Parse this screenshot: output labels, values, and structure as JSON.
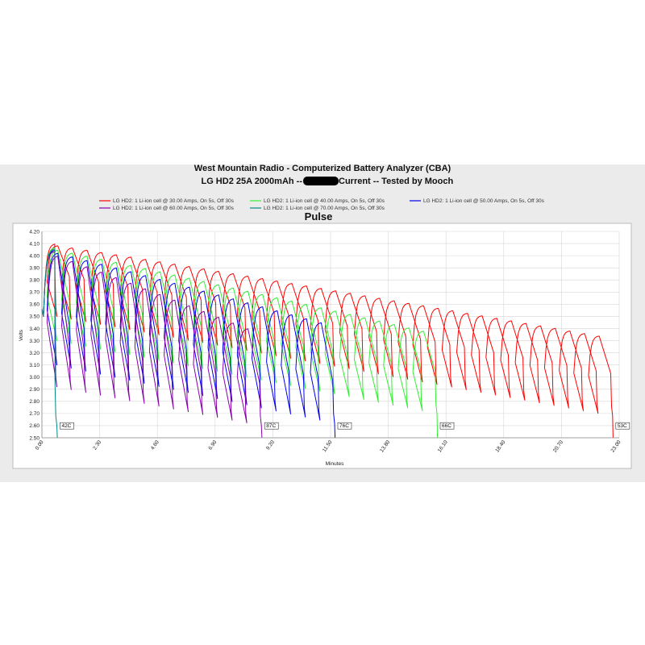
{
  "chart_data": {
    "type": "line",
    "title": "West Mountain Radio - Computerized Battery Analyzer (CBA)",
    "subtitle_left": "LG HD2 25A 2000mAh --",
    "subtitle_right": "Current -- Tested by Mooch",
    "mode": "Pulse",
    "xlabel": "Minutes",
    "ylabel": "Volts",
    "xlim": [
      0,
      23
    ],
    "ylim": [
      2.5,
      4.2
    ],
    "grid": true,
    "legend_position": "top",
    "x_ticks": [
      "0.00",
      "2.30",
      "4.60",
      "6.90",
      "9.20",
      "11.50",
      "13.80",
      "16.10",
      "18.40",
      "20.70",
      "23.00"
    ],
    "y_ticks": [
      "2.50",
      "2.60",
      "2.70",
      "2.80",
      "2.90",
      "3.00",
      "3.10",
      "3.20",
      "3.30",
      "3.40",
      "3.50",
      "3.60",
      "3.70",
      "3.80",
      "3.90",
      "4.00",
      "4.10",
      "4.20"
    ],
    "pulse_period_min": 0.583,
    "series": [
      {
        "name": "LG HD2: 1 Li-ion cell @ 30.00 Amps, On 5s, Off 30s",
        "color": "#ff0000",
        "pulses": 39,
        "rest_start": 4.1,
        "rest_end": 3.34,
        "load_start": 3.5,
        "load_end": 2.68,
        "end_min": 22.7,
        "temp_label": "53C"
      },
      {
        "name": "LG HD2: 1 Li-ion cell @ 40.00 Amps, On 5s, Off 30s",
        "color": "#33ee33",
        "pulses": 27,
        "rest_start": 4.07,
        "rest_end": 3.38,
        "load_start": 3.3,
        "load_end": 2.7,
        "end_min": 15.8,
        "temp_label": "66C"
      },
      {
        "name": "LG HD2: 1 Li-ion cell @ 50.00 Amps, On 5s, Off 30s",
        "color": "#0000ee",
        "pulses": 20,
        "rest_start": 4.05,
        "rest_end": 3.45,
        "load_start": 3.1,
        "load_end": 2.62,
        "end_min": 11.7,
        "temp_label": "76C"
      },
      {
        "name": "LG HD2: 1 Li-ion cell @ 60.00 Amps, On 5s, Off 30s",
        "color": "#8800aa",
        "pulses": 15,
        "rest_start": 4.04,
        "rest_end": 3.4,
        "load_start": 2.92,
        "load_end": 2.6,
        "end_min": 8.75,
        "temp_label": "87C"
      },
      {
        "name": "LG HD2: 1 Li-ion cell @ 70.00 Amps, On 5s, Off 30s",
        "color": "#008888",
        "pulses": 1,
        "rest_start": 4.06,
        "rest_end": 4.06,
        "load_start": 2.6,
        "load_end": 2.6,
        "end_min": 0.25,
        "temp_label": "42C"
      }
    ]
  }
}
